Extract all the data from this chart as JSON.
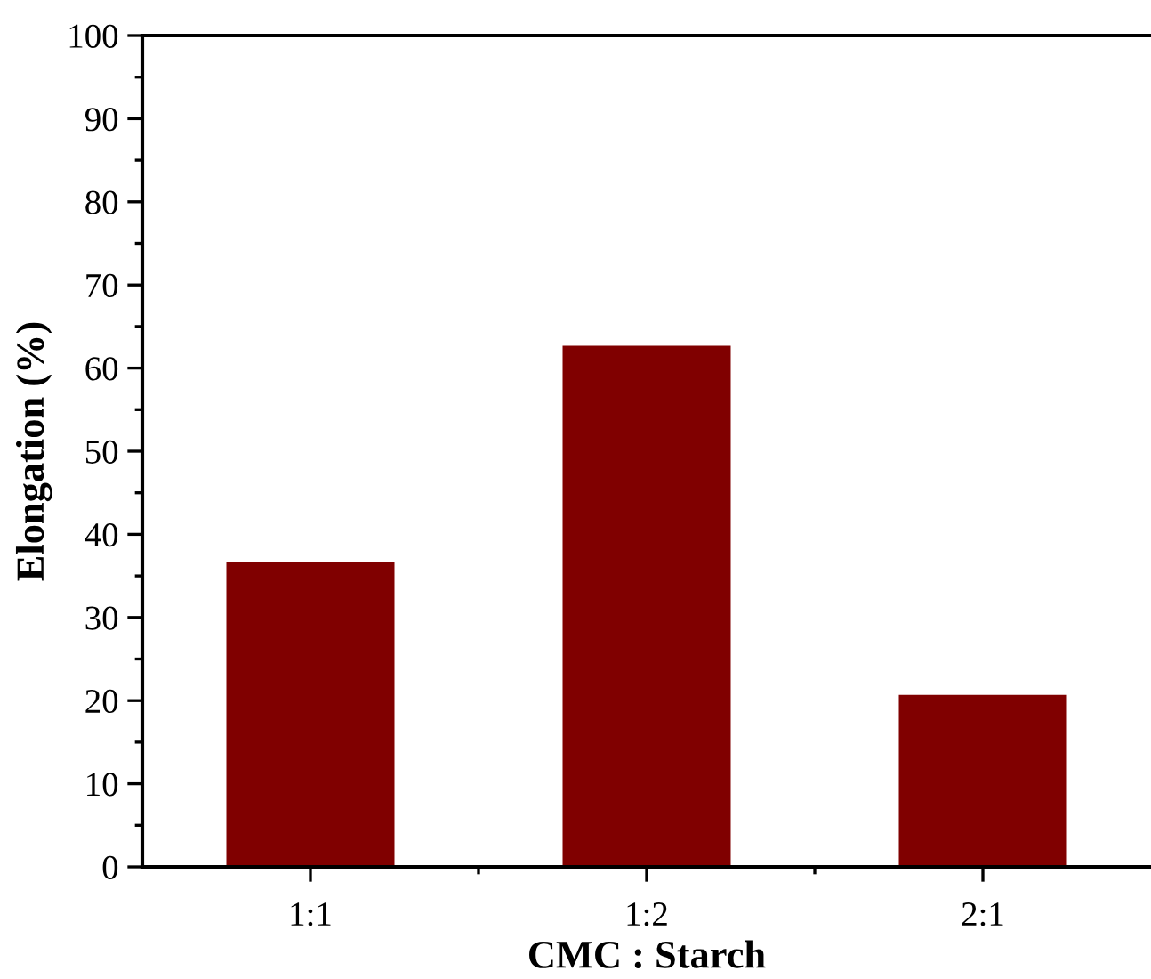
{
  "chart_data": {
    "type": "bar",
    "xlabel": "CMC : Starch",
    "ylabel": "Elongation (%)",
    "categories": [
      "1:1",
      "1:2",
      "2:1"
    ],
    "values": [
      36.7,
      62.7,
      20.7
    ],
    "color": "#800000",
    "ylim": [
      0,
      100
    ],
    "yticks": [
      0,
      10,
      20,
      30,
      40,
      50,
      60,
      70,
      80,
      90,
      100
    ],
    "grid": false
  }
}
